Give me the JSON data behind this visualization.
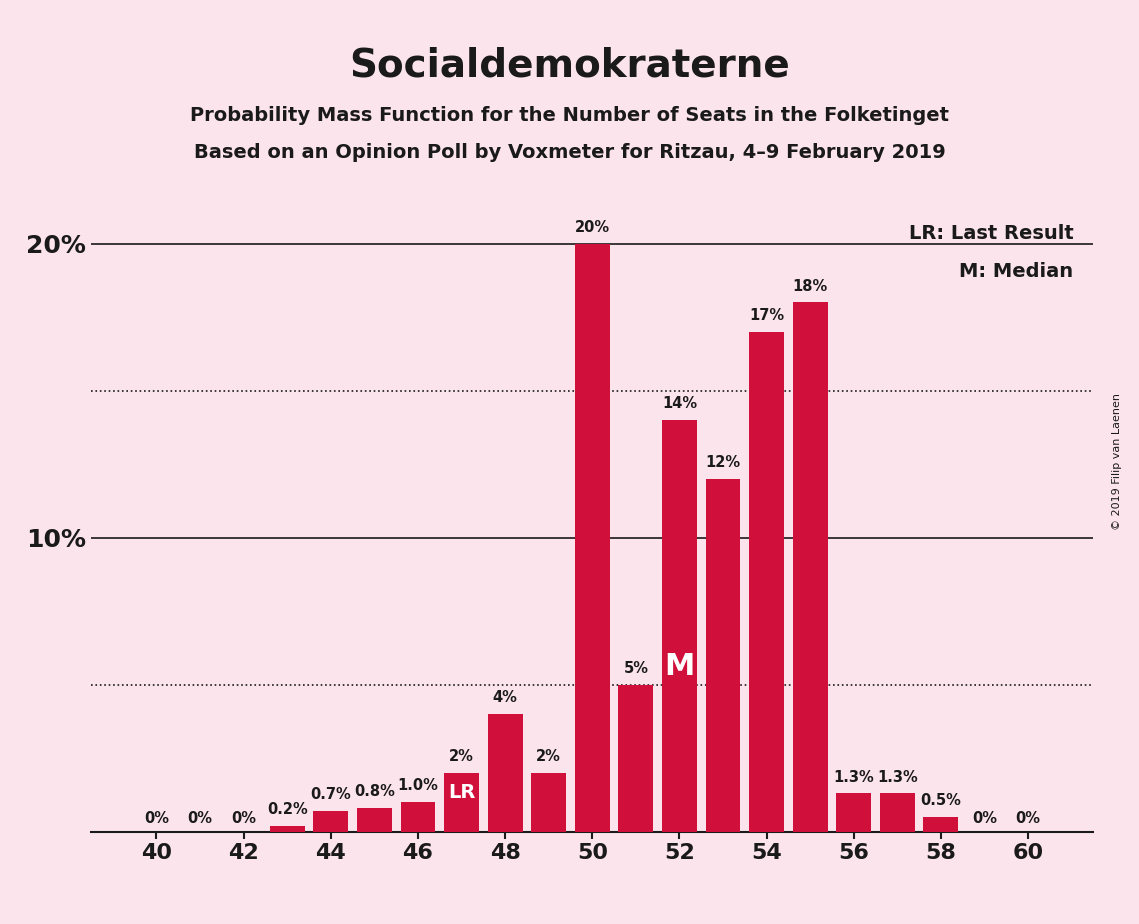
{
  "title": "Socialdemokraterne",
  "subtitle1": "Probability Mass Function for the Number of Seats in the Folketinget",
  "subtitle2": "Based on an Opinion Poll by Voxmeter for Ritzau, 4–9 February 2019",
  "copyright": "© 2019 Filip van Laenen",
  "seats": [
    40,
    41,
    42,
    43,
    44,
    45,
    46,
    47,
    48,
    49,
    50,
    51,
    52,
    53,
    54,
    55,
    56,
    57,
    58,
    59,
    60
  ],
  "values": [
    0.0,
    0.0,
    0.0,
    0.2,
    0.7,
    0.8,
    1.0,
    2.0,
    4.0,
    2.0,
    20.0,
    5.0,
    14.0,
    12.0,
    17.0,
    18.0,
    1.3,
    1.3,
    0.5,
    0.0,
    0.0
  ],
  "bar_color": "#d0103a",
  "background_color": "#fce4ec",
  "text_color": "#1a1a1a",
  "axis_color": "#1a1a1a",
  "last_result_seat": 47,
  "median_seat": 52,
  "legend_lr": "LR: Last Result",
  "legend_m": "M: Median",
  "ylabel_10": "10%",
  "ylabel_20": "20%",
  "xlabel_ticks": [
    40,
    42,
    44,
    46,
    48,
    50,
    52,
    54,
    56,
    58,
    60
  ],
  "ylim": [
    0,
    22
  ],
  "dotted_line_y1": 5.0,
  "dotted_line_y2": 15.0,
  "solid_line_y1": 10.0,
  "solid_line_y2": 20.0,
  "bar_labels": {
    "40": "0%",
    "41": "0%",
    "42": "0%",
    "43": "0.2%",
    "44": "0.7%",
    "45": "0.8%",
    "46": "1.0%",
    "47": "2%",
    "48": "4%",
    "49": "2%",
    "50": "20%",
    "51": "5%",
    "52": "14%",
    "53": "12%",
    "54": "17%",
    "55": "18%",
    "56": "1.3%",
    "57": "1.3%",
    "58": "0.5%",
    "59": "0%",
    "60": "0%"
  }
}
